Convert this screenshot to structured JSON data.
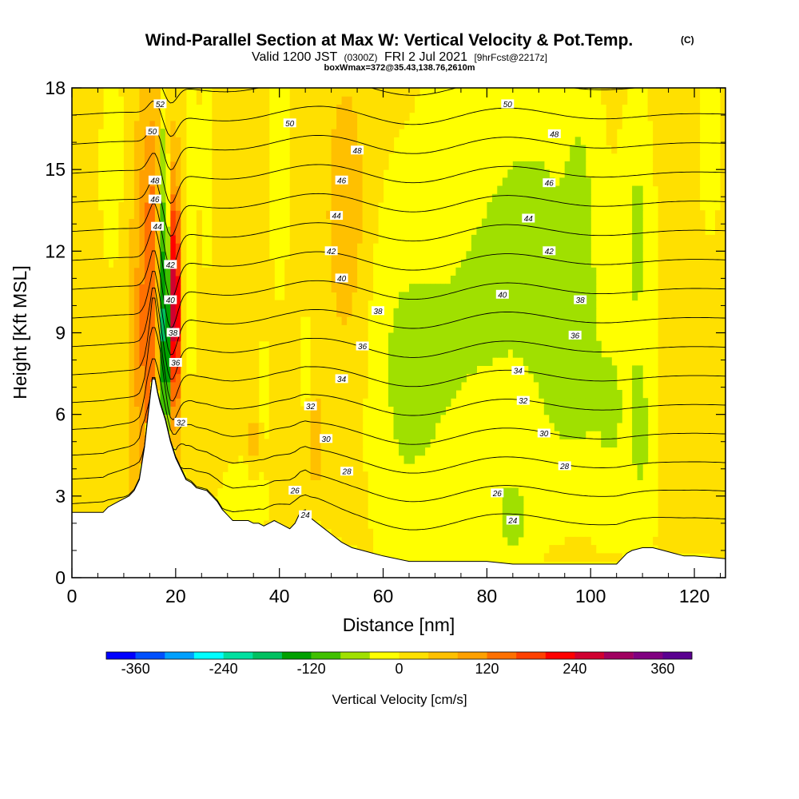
{
  "chart_data": {
    "type": "heatmap",
    "title": "Wind-Parallel Section at Max W: Vertical Velocity & Pot.Temp.",
    "title_suffix": "(C)",
    "subtitle": {
      "part1": "Valid 1200 JST",
      "part2": "(0300Z)",
      "part3": "FRI 2 Jul 2021",
      "part4": "[9hrFcst@2217z]"
    },
    "subtitle2": "boxWmax=372@35.43,138.76,2610m",
    "xlabel": "Distance [nm]",
    "ylabel": "Height [Kft MSL]",
    "xlim": [
      0,
      126
    ],
    "ylim": [
      0,
      18
    ],
    "x_ticks": [
      0,
      20,
      40,
      60,
      80,
      100,
      120
    ],
    "y_ticks": [
      0,
      3,
      6,
      9,
      12,
      15,
      18
    ],
    "colorbar": {
      "label": "Vertical Velocity [cm/s]",
      "min": -400,
      "max": 400,
      "step": 40,
      "tick_values": [
        -360,
        -240,
        -120,
        0,
        120,
        240,
        360
      ],
      "tick_labels": [
        "-360",
        "-240",
        "-120",
        "0",
        "120",
        "240",
        "360"
      ],
      "colors": [
        "#0000ff",
        "#0050ff",
        "#00a0ff",
        "#00ffff",
        "#00e0a0",
        "#00c060",
        "#00a000",
        "#40c000",
        "#a0e000",
        "#ffff00",
        "#ffe000",
        "#ffc000",
        "#ffa000",
        "#ff7000",
        "#ff4000",
        "#ff0000",
        "#d00030",
        "#a00060",
        "#800080",
        "#5a0090"
      ]
    },
    "terrain": {
      "x": [
        0,
        6,
        7,
        9,
        11,
        12,
        13,
        14,
        15,
        15.5,
        16,
        16.5,
        17,
        18,
        19,
        20,
        21,
        22,
        23,
        24,
        26,
        27,
        28,
        29,
        30,
        31,
        32,
        33,
        34,
        35,
        36,
        37,
        38,
        39,
        40,
        41,
        42,
        43,
        44,
        45,
        46,
        48,
        50,
        52,
        54,
        56,
        58,
        60,
        65,
        70,
        75,
        80,
        85,
        90,
        95,
        100,
        103,
        105,
        106,
        107,
        108,
        110,
        112,
        114,
        116,
        118,
        120,
        126
      ],
      "y": [
        2.4,
        2.4,
        2.6,
        2.8,
        3.0,
        3.2,
        3.6,
        4.8,
        6.5,
        7.3,
        7.3,
        6.8,
        6.4,
        5.8,
        5.0,
        4.4,
        4.0,
        3.6,
        3.5,
        3.3,
        3.2,
        3.0,
        2.8,
        2.5,
        2.3,
        2.1,
        2.1,
        2.1,
        2.1,
        2.0,
        2.0,
        1.9,
        2.0,
        2.1,
        2.0,
        1.9,
        1.8,
        2.0,
        2.4,
        2.5,
        2.2,
        1.9,
        1.6,
        1.3,
        1.1,
        1.0,
        0.9,
        0.8,
        0.6,
        0.6,
        0.6,
        0.6,
        0.5,
        0.5,
        0.5,
        0.5,
        0.5,
        0.5,
        0.7,
        0.9,
        1.0,
        1.1,
        1.1,
        1.0,
        0.9,
        0.8,
        0.8,
        0.7
      ]
    },
    "theta_labels": [
      {
        "value": "52",
        "x": 17,
        "y": 17.4
      },
      {
        "value": "50",
        "x": 15.5,
        "y": 16.4
      },
      {
        "value": "48",
        "x": 16,
        "y": 14.6
      },
      {
        "value": "46",
        "x": 16,
        "y": 13.9
      },
      {
        "value": "44",
        "x": 16.5,
        "y": 12.9
      },
      {
        "value": "42",
        "x": 19,
        "y": 11.5
      },
      {
        "value": "40",
        "x": 19,
        "y": 10.2
      },
      {
        "value": "38",
        "x": 19.5,
        "y": 9.0
      },
      {
        "value": "36",
        "x": 20,
        "y": 7.9
      },
      {
        "value": "32",
        "x": 21,
        "y": 5.7
      },
      {
        "value": "50",
        "x": 42,
        "y": 16.7
      },
      {
        "value": "48",
        "x": 55,
        "y": 15.7
      },
      {
        "value": "46",
        "x": 52,
        "y": 14.6
      },
      {
        "value": "44",
        "x": 51,
        "y": 13.3
      },
      {
        "value": "42",
        "x": 50,
        "y": 12.0
      },
      {
        "value": "40",
        "x": 52,
        "y": 11.0
      },
      {
        "value": "38",
        "x": 59,
        "y": 9.8
      },
      {
        "value": "36",
        "x": 56,
        "y": 8.5
      },
      {
        "value": "34",
        "x": 52,
        "y": 7.3
      },
      {
        "value": "32",
        "x": 46,
        "y": 6.3
      },
      {
        "value": "30",
        "x": 49,
        "y": 5.1
      },
      {
        "value": "28",
        "x": 53,
        "y": 3.9
      },
      {
        "value": "26",
        "x": 43,
        "y": 3.2
      },
      {
        "value": "24",
        "x": 45,
        "y": 2.3
      },
      {
        "value": "50",
        "x": 84,
        "y": 17.4
      },
      {
        "value": "48",
        "x": 93,
        "y": 16.3
      },
      {
        "value": "46",
        "x": 92,
        "y": 14.5
      },
      {
        "value": "44",
        "x": 88,
        "y": 13.2
      },
      {
        "value": "42",
        "x": 92,
        "y": 12.0
      },
      {
        "value": "40",
        "x": 83,
        "y": 10.4
      },
      {
        "value": "38",
        "x": 98,
        "y": 10.2
      },
      {
        "value": "36",
        "x": 97,
        "y": 8.9
      },
      {
        "value": "34",
        "x": 86,
        "y": 7.6
      },
      {
        "value": "32",
        "x": 87,
        "y": 6.5
      },
      {
        "value": "30",
        "x": 91,
        "y": 5.3
      },
      {
        "value": "28",
        "x": 95,
        "y": 4.1
      },
      {
        "value": "26",
        "x": 82,
        "y": 3.1
      },
      {
        "value": "24",
        "x": 85,
        "y": 2.1
      }
    ]
  }
}
